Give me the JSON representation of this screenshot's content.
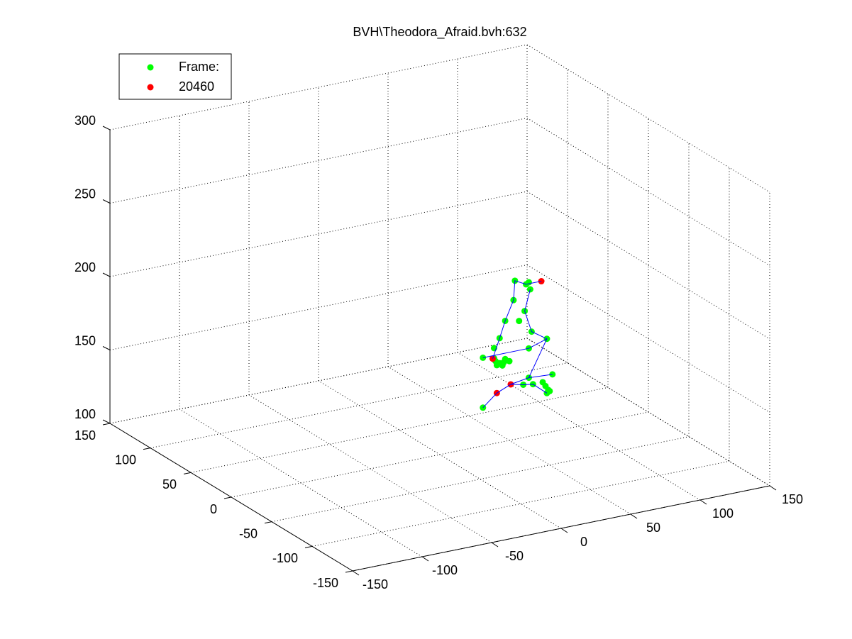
{
  "chart_data": {
    "type": "scatter3d",
    "title": "BVH\\Theodora_Afraid.bvh:632",
    "xlim": [
      -150,
      150
    ],
    "xticks": [
      -150,
      -100,
      -50,
      0,
      50,
      100,
      150
    ],
    "ylim": [
      -150,
      150
    ],
    "yticks": [
      -150,
      -100,
      -50,
      0,
      50,
      100,
      150
    ],
    "zlim": [
      100,
      300
    ],
    "zticks": [
      100,
      150,
      200,
      250,
      300
    ],
    "grid": true,
    "legend": "upper left",
    "series": [
      {
        "name": "Frame:",
        "color": "#00ff00",
        "x": [
          54,
          62,
          64,
          65,
          53,
          61,
          47,
          57,
          43,
          66,
          39,
          77,
          64,
          31,
          39,
          47,
          41,
          43,
          46,
          45,
          50,
          40,
          64,
          81,
          67,
          74,
          76,
          78,
          77,
          79,
          60,
          31
        ],
        "y": [
          0,
          0,
          0,
          0,
          0,
          0,
          0,
          0,
          0,
          0,
          0,
          0,
          0,
          0,
          0,
          0,
          0,
          0,
          0,
          0,
          0,
          0,
          0,
          0,
          0,
          0,
          0,
          0,
          0,
          0,
          0,
          0
        ],
        "z": [
          208,
          204,
          205,
          200,
          195,
          186,
          182,
          180,
          171,
          171,
          165,
          164,
          160,
          160,
          158,
          156,
          153,
          154,
          154,
          152,
          154,
          156,
          140,
          139,
          135,
          135,
          132,
          129,
          127,
          128,
          136,
          126
        ]
      },
      {
        "name": "20460",
        "color": "#ff0000",
        "x": [
          73,
          38,
          51,
          41
        ],
        "y": [
          0,
          0,
          0,
          0
        ],
        "z": [
          204,
          158,
          138,
          134
        ]
      },
      {
        "color": "#0000ff",
        "line": true,
        "x": [
          31,
          41,
          51,
          60,
          67,
          77,
          null,
          51,
          64,
          81,
          null,
          38,
          43,
          47,
          53,
          54,
          62,
          73,
          null,
          65,
          61,
          66,
          77,
          64,
          null,
          31,
          64,
          77
        ],
        "y": [
          0,
          0,
          0,
          0,
          0,
          0,
          null,
          0,
          0,
          0,
          null,
          0,
          0,
          0,
          0,
          0,
          0,
          0,
          null,
          0,
          0,
          0,
          0,
          0,
          null,
          0,
          0,
          0
        ],
        "z": [
          126,
          134,
          138,
          136,
          135,
          127,
          null,
          138,
          140,
          139,
          null,
          158,
          171,
          182,
          195,
          208,
          204,
          204,
          null,
          200,
          186,
          171,
          164,
          140,
          null,
          160,
          160,
          164
        ]
      }
    ]
  }
}
